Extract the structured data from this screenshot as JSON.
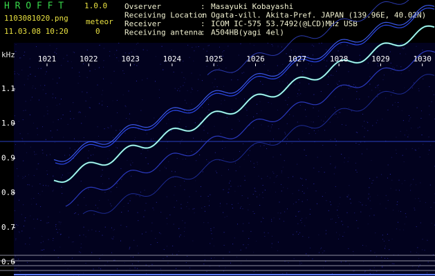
{
  "app": {
    "name": "H R O F F T",
    "version": "1.0.0",
    "file": "1103081020.png",
    "datetime": "11.03.08 10:20",
    "mode_label": "meteor",
    "count": "0"
  },
  "info": [
    {
      "label": "Ovserver",
      "value": "Masayuki Kobayashi"
    },
    {
      "label": "Receiving Location",
      "value": "Ogata-vill. Akita-Pref. JAPAN (139.96E, 40.02N)"
    },
    {
      "label": "Receiver",
      "value": "ICOM IC-575 53.7492(@LCD)MHz USB"
    },
    {
      "label": "Receiving antenna",
      "value": "A504HB(yagi 4el)"
    }
  ],
  "separator": ":",
  "spectrogram": {
    "y_unit": "kHz",
    "time_labels": [
      "1021",
      "1022",
      "1023",
      "1024",
      "1025",
      "1026",
      "1027",
      "1028",
      "1029",
      "1030"
    ],
    "freq_labels": [
      "1.1",
      "1.0",
      "0.9",
      "0.8",
      "0.7",
      "0.6"
    ]
  }
}
